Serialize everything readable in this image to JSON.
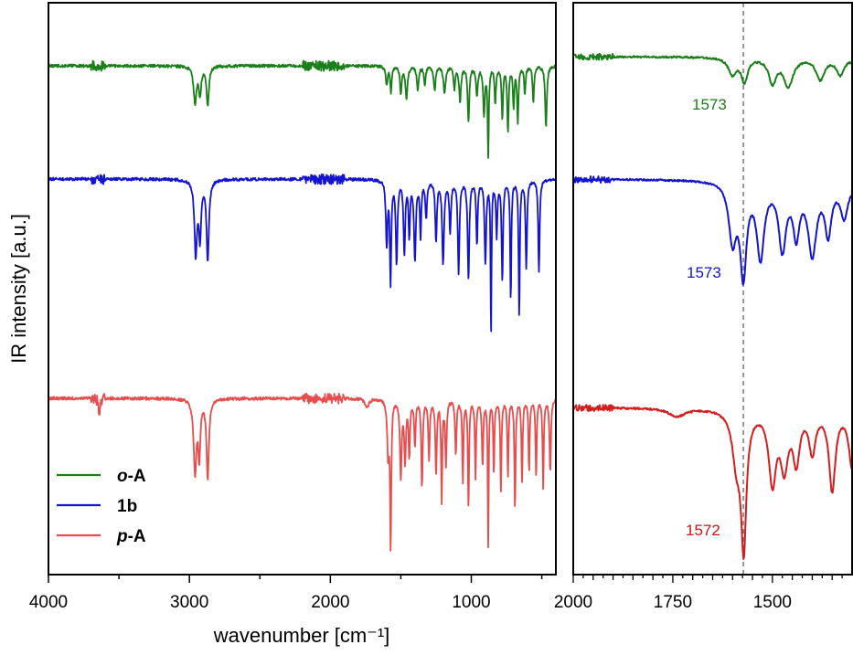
{
  "chart_data": [
    {
      "type": "line",
      "panel": "left",
      "xlabel": "wavenumber [cm⁻¹]",
      "ylabel": "IR intensity [a.u.]",
      "xlim": [
        4000,
        400
      ],
      "xticks": [
        "4000",
        "3000",
        "2000",
        "1000"
      ],
      "series": [
        {
          "name": "o-A",
          "prefix": "o",
          "suffix": "-A",
          "color": "#1a7f1a",
          "baseline": 72
        },
        {
          "name": "1b",
          "prefix": "",
          "suffix": "1b",
          "color": "#1414d0",
          "baseline": 196
        },
        {
          "name": "p-A",
          "prefix": "p",
          "suffix": "-A",
          "color": "#e84c4c",
          "baseline": 436
        }
      ],
      "legend": "bottom-left"
    },
    {
      "type": "line",
      "panel": "right",
      "xlim": [
        2000,
        1300
      ],
      "xticks": [
        "2000",
        "1750",
        "1500"
      ],
      "marker_line": 1573,
      "annotations": [
        {
          "text": "1573",
          "color": "#1a7f1a"
        },
        {
          "text": "1573",
          "color": "#1414d0"
        },
        {
          "text": "1572",
          "color": "#c81414"
        }
      ]
    }
  ]
}
